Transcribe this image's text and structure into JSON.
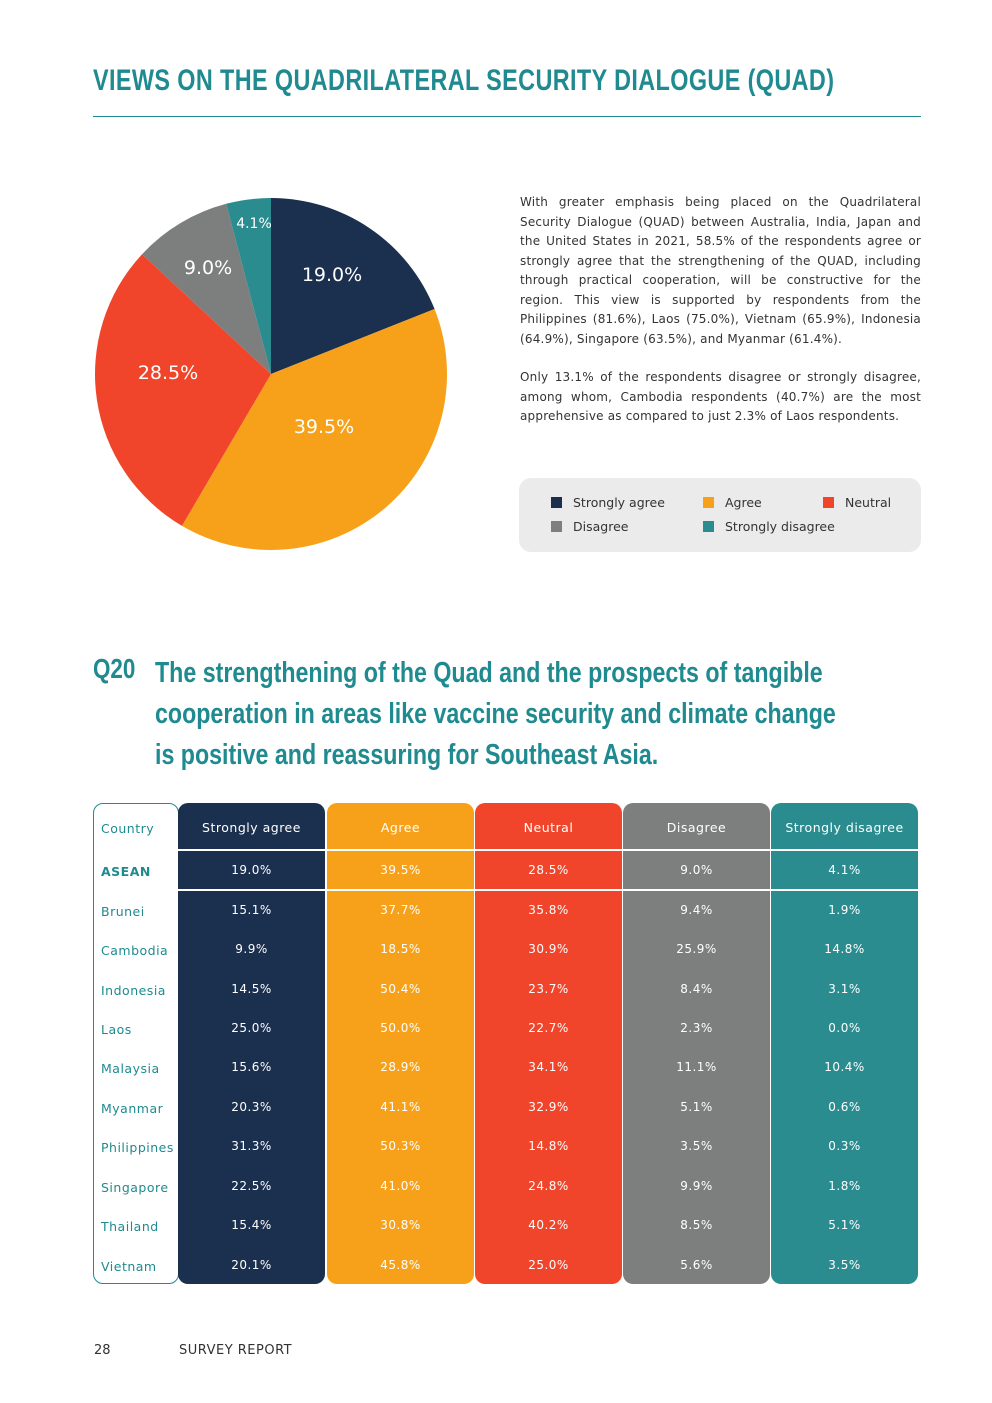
{
  "page": {
    "title": "VIEWS ON THE QUADRILATERAL SECURITY DIALOGUE (QUAD)",
    "paragraphs": [
      "With greater emphasis being placed on the Quadrilateral Security Dialogue (QUAD) between Australia, India, Japan and the United States in 2021, 58.5% of the respondents agree or strongly agree that the strengthening of the QUAD, including through practical cooperation, will be constructive for the region. This view is supported by respondents from the Philippines (81.6%), Laos (75.0%), Vietnam (65.9%), Indonesia (64.9%), Singapore (63.5%), and Myanmar (61.4%).",
      "Only 13.1% of the respondents disagree or strongly disagree, among whom, Cambodia respondents (40.7%) are the most apprehensive as compared to just 2.3% of Laos respondents."
    ],
    "question_number": "Q20",
    "question_text": "The strengthening of the Quad and the prospects of tangible cooperation in areas like vaccine security and climate change is positive and reassuring for Southeast Asia.",
    "footer_page": "28",
    "footer_label": "SURVEY REPORT"
  },
  "colors": {
    "strongly_agree": "#1b2f4e",
    "agree": "#f7a11a",
    "neutral": "#f0452a",
    "disagree": "#7d7f7e",
    "strongly_disagree": "#2a8c8e",
    "accent": "#1f8a8f"
  },
  "chart_data": {
    "type": "pie",
    "title": "",
    "slices": [
      {
        "label": "Strongly agree",
        "value": 19.0,
        "display": "19.0%",
        "color": "#1b2f4e"
      },
      {
        "label": "Agree",
        "value": 39.5,
        "display": "39.5%",
        "color": "#f7a11a"
      },
      {
        "label": "Neutral",
        "value": 28.5,
        "display": "28.5%",
        "color": "#f0452a"
      },
      {
        "label": "Disagree",
        "value": 9.0,
        "display": "9.0%",
        "color": "#7d7f7e"
      },
      {
        "label": "Strongly disagree",
        "value": 4.1,
        "display": "4.1%",
        "color": "#2a8c8e"
      }
    ],
    "legend": [
      "Strongly agree",
      "Agree",
      "Neutral",
      "Disagree",
      "Strongly disagree"
    ]
  },
  "table": {
    "country_header": "Country",
    "categories": [
      {
        "key": "strongly_agree",
        "label": "Strongly agree"
      },
      {
        "key": "agree",
        "label": "Agree"
      },
      {
        "key": "neutral",
        "label": "Neutral"
      },
      {
        "key": "disagree",
        "label": "Disagree"
      },
      {
        "key": "strongly_disagree",
        "label": "Strongly disagree"
      }
    ],
    "rows": [
      {
        "country": "ASEAN",
        "values": [
          "19.0%",
          "39.5%",
          "28.5%",
          "9.0%",
          "4.1%"
        ]
      },
      {
        "country": "Brunei",
        "values": [
          "15.1%",
          "37.7%",
          "35.8%",
          "9.4%",
          "1.9%"
        ]
      },
      {
        "country": "Cambodia",
        "values": [
          "9.9%",
          "18.5%",
          "30.9%",
          "25.9%",
          "14.8%"
        ]
      },
      {
        "country": "Indonesia",
        "values": [
          "14.5%",
          "50.4%",
          "23.7%",
          "8.4%",
          "3.1%"
        ]
      },
      {
        "country": "Laos",
        "values": [
          "25.0%",
          "50.0%",
          "22.7%",
          "2.3%",
          "0.0%"
        ]
      },
      {
        "country": "Malaysia",
        "values": [
          "15.6%",
          "28.9%",
          "34.1%",
          "11.1%",
          "10.4%"
        ]
      },
      {
        "country": "Myanmar",
        "values": [
          "20.3%",
          "41.1%",
          "32.9%",
          "5.1%",
          "0.6%"
        ]
      },
      {
        "country": "Philippines",
        "values": [
          "31.3%",
          "50.3%",
          "14.8%",
          "3.5%",
          "0.3%"
        ]
      },
      {
        "country": "Singapore",
        "values": [
          "22.5%",
          "41.0%",
          "24.8%",
          "9.9%",
          "1.8%"
        ]
      },
      {
        "country": "Thailand",
        "values": [
          "15.4%",
          "30.8%",
          "40.2%",
          "8.5%",
          "5.1%"
        ]
      },
      {
        "country": "Vietnam",
        "values": [
          "20.1%",
          "45.8%",
          "25.0%",
          "5.6%",
          "3.5%"
        ]
      }
    ]
  }
}
